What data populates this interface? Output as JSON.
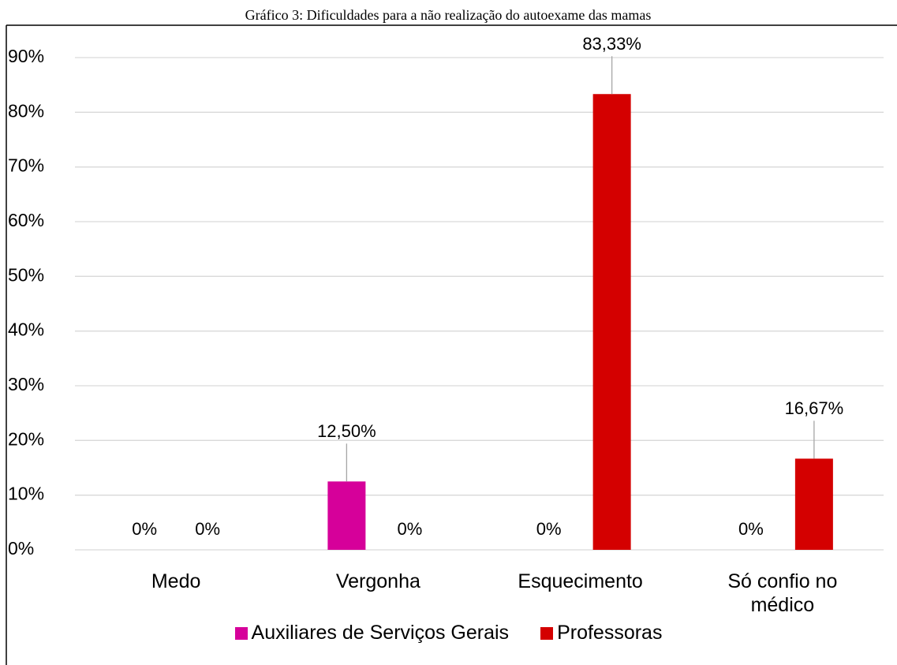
{
  "chart_data": {
    "type": "bar",
    "title": "Gráfico 3: Dificuldades para a não realização do autoexame das mamas",
    "categories": [
      "Medo",
      "Vergonha",
      "Esquecimento",
      "Só confio no médico"
    ],
    "series": [
      {
        "name": "Auxiliares de Serviços Gerais",
        "color": "#d6009a",
        "values": [
          0,
          12.5,
          0,
          0
        ],
        "value_labels": [
          "0%",
          "12,50%",
          "0%",
          "0%"
        ]
      },
      {
        "name": "Professoras",
        "color": "#d40000",
        "values": [
          0,
          0,
          83.33,
          16.67
        ],
        "value_labels": [
          "0%",
          "0%",
          "83,33%",
          "16,67%"
        ]
      }
    ],
    "ylim": [
      0,
      90
    ],
    "yticks": [
      {
        "value": 0,
        "label": "0%"
      },
      {
        "value": 10,
        "label": "10%"
      },
      {
        "value": 20,
        "label": "20%"
      },
      {
        "value": 30,
        "label": "30%"
      },
      {
        "value": 40,
        "label": "40%"
      },
      {
        "value": 50,
        "label": "50%"
      },
      {
        "value": 60,
        "label": "60%"
      },
      {
        "value": 70,
        "label": "70%"
      },
      {
        "value": 80,
        "label": "80%"
      },
      {
        "value": 90,
        "label": "90%"
      }
    ],
    "grid": true,
    "legend": "bottom"
  }
}
